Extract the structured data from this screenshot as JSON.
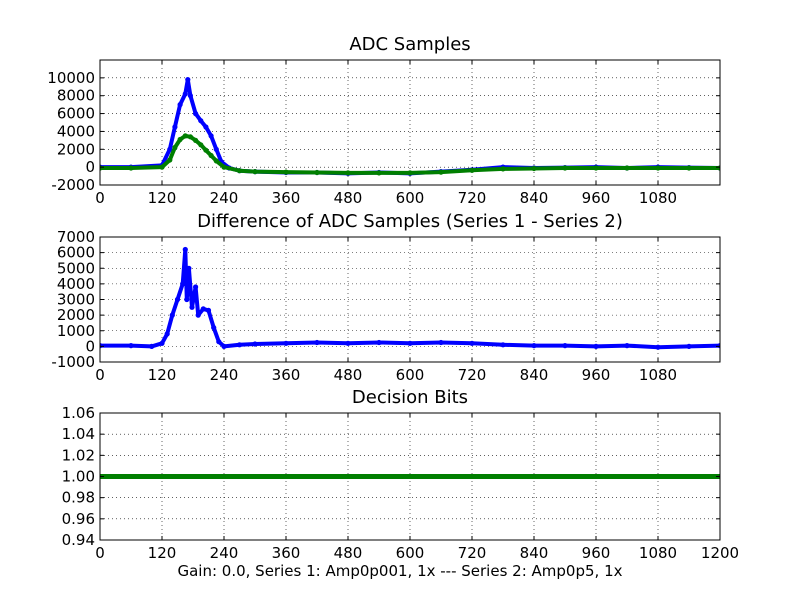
{
  "chart_data": [
    {
      "type": "line",
      "title": "ADC Samples",
      "xlabel": "",
      "ylabel": "",
      "xlim": [
        0,
        1200
      ],
      "ylim": [
        -2000,
        12000
      ],
      "x_ticks": [
        0,
        120,
        240,
        360,
        480,
        600,
        720,
        840,
        960,
        1080
      ],
      "y_ticks": [
        -2000,
        0,
        2000,
        4000,
        6000,
        8000,
        10000
      ],
      "grid": true,
      "colors": {
        "series_1": "#0000ff",
        "series_2": "#007f00"
      },
      "series": [
        {
          "name": "Series 1",
          "color": "#0000ff",
          "marker": "dot",
          "x": [
            0,
            60,
            120,
            135,
            145,
            155,
            165,
            170,
            175,
            185,
            195,
            205,
            215,
            225,
            235,
            250,
            270,
            300,
            360,
            420,
            480,
            540,
            600,
            660,
            720,
            780,
            840,
            900,
            960,
            1020,
            1080,
            1140,
            1200
          ],
          "y": [
            0,
            0,
            200,
            2000,
            4500,
            7000,
            8200,
            9800,
            8000,
            6000,
            5200,
            4500,
            3500,
            2000,
            600,
            -100,
            -400,
            -500,
            -600,
            -600,
            -700,
            -600,
            -700,
            -500,
            -300,
            0,
            -100,
            -50,
            0,
            -100,
            0,
            -50,
            -100
          ]
        },
        {
          "name": "Series 2",
          "color": "#007f00",
          "marker": "dot",
          "x": [
            0,
            60,
            120,
            135,
            145,
            155,
            165,
            175,
            185,
            195,
            205,
            215,
            225,
            240,
            270,
            300,
            360,
            420,
            480,
            540,
            600,
            660,
            720,
            780,
            840,
            900,
            960,
            1020,
            1080,
            1140,
            1200
          ],
          "y": [
            -100,
            -100,
            0,
            800,
            2200,
            3100,
            3500,
            3400,
            3000,
            2500,
            1900,
            1300,
            700,
            0,
            -400,
            -500,
            -550,
            -600,
            -650,
            -650,
            -650,
            -550,
            -350,
            -200,
            -150,
            -100,
            -100,
            -100,
            -100,
            -100,
            -100
          ]
        }
      ]
    },
    {
      "type": "line",
      "title": "Difference of ADC Samples (Series 1 - Series 2)",
      "xlabel": "",
      "ylabel": "",
      "xlim": [
        0,
        1200
      ],
      "ylim": [
        -1000,
        7000
      ],
      "x_ticks": [
        0,
        120,
        240,
        360,
        480,
        600,
        720,
        840,
        960,
        1080
      ],
      "y_ticks": [
        -1000,
        0,
        1000,
        2000,
        3000,
        4000,
        5000,
        6000,
        7000
      ],
      "grid": true,
      "series": [
        {
          "name": "Series 1 - Series 2",
          "color": "#0000ff",
          "marker": "dot",
          "x": [
            0,
            60,
            100,
            120,
            130,
            140,
            150,
            160,
            165,
            168,
            172,
            178,
            185,
            190,
            200,
            210,
            220,
            230,
            240,
            270,
            300,
            360,
            420,
            480,
            540,
            600,
            660,
            720,
            780,
            840,
            900,
            960,
            1020,
            1080,
            1140,
            1200
          ],
          "y": [
            50,
            50,
            0,
            200,
            800,
            2000,
            3000,
            4000,
            6200,
            3000,
            5000,
            2500,
            3800,
            2000,
            2400,
            2300,
            1200,
            300,
            0,
            100,
            150,
            200,
            250,
            200,
            250,
            200,
            250,
            200,
            100,
            50,
            50,
            0,
            50,
            -50,
            0,
            50
          ]
        }
      ]
    },
    {
      "type": "line",
      "title": "Decision Bits",
      "xlabel": "Gain: 0.0, Series 1: Amp0p001, 1x --- Series 2: Amp0p5, 1x",
      "ylabel": "",
      "xlim": [
        0,
        1200
      ],
      "ylim": [
        0.94,
        1.06
      ],
      "x_ticks": [
        0,
        120,
        240,
        360,
        480,
        600,
        720,
        840,
        960,
        1080,
        1200
      ],
      "y_ticks": [
        "0.94",
        "0.96",
        "0.98",
        "1.00",
        "1.02",
        "1.04",
        "1.06"
      ],
      "grid": true,
      "series": [
        {
          "name": "Decision",
          "color": "#007f00",
          "marker": "dot",
          "x": [
            0,
            1200
          ],
          "y": [
            1.0,
            1.0
          ]
        }
      ]
    }
  ]
}
